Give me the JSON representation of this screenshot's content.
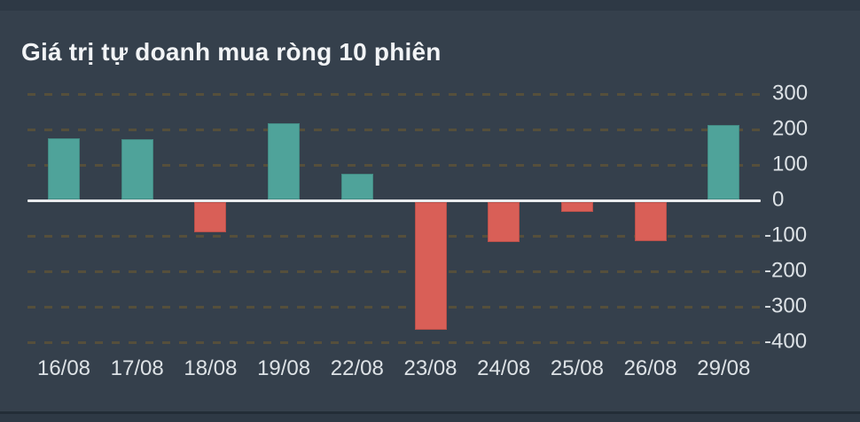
{
  "chart_data": {
    "type": "bar",
    "title": "Giá trị tự doanh mua ròng 10 phiên",
    "categories": [
      "16/08",
      "17/08",
      "18/08",
      "19/08",
      "22/08",
      "23/08",
      "24/08",
      "25/08",
      "26/08",
      "29/08"
    ],
    "values": [
      173,
      170,
      -86,
      215,
      72,
      -360,
      -113,
      -28,
      -110,
      211
    ],
    "yticks": [
      300,
      200,
      100,
      0,
      -100,
      -200,
      -300,
      -400
    ],
    "ylim": [
      -440,
      345
    ],
    "xlabel": "",
    "ylabel": "",
    "grid": "dashed-horizontal",
    "legend_position": "none",
    "y_axis_side": "right"
  },
  "colors": {
    "positive": "#4fa39a",
    "negative": "#d95f57",
    "panel_background": "#35404c",
    "page_background": "#2e3945",
    "zero_line": "#e9ebed",
    "gridline": "#57503a",
    "axis_label": "#dde2e6",
    "title": "#f2f4f6"
  }
}
